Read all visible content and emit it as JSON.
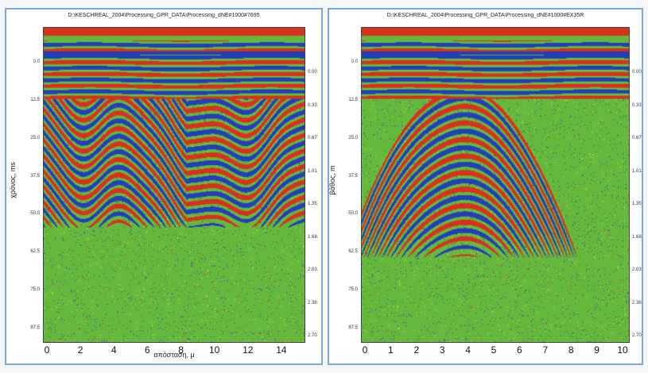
{
  "panels": [
    {
      "title": "D:\\KESCHREAL_2004\\Processing_GPR_DATA\\Processing_dNE#1000#7695",
      "ylabel": "χρόνος, ms",
      "xlabel": "απόσταση, μ",
      "y_ticks": [
        "0.0",
        "12.5",
        "25.0",
        "37.5",
        "50.0",
        "62.5",
        "75.0",
        "87.5"
      ],
      "right_ticks": [
        "0.00",
        "0.33",
        "0.67",
        "1.01",
        "1.35",
        "1.68",
        "2.03",
        "2.36",
        "2.70"
      ],
      "x_ticks": [
        "0",
        "2",
        "4",
        "6",
        "8",
        "10",
        "12",
        "14"
      ],
      "x_max": 15,
      "pattern": "dipping"
    },
    {
      "title": "D:\\KESCHREAL_2004\\Processing_GPR_DATA\\Processing_dNE#1000#EX35R",
      "ylabel": "βάθος, m",
      "xlabel": "",
      "y_ticks": [
        "0.0",
        "12.5",
        "25.0",
        "37.5",
        "50.0",
        "62.5",
        "75.0",
        "87.5"
      ],
      "right_ticks": [
        "0.00",
        "0.33",
        "0.67",
        "1.01",
        "1.35",
        "1.68",
        "2.03",
        "2.36",
        "2.70"
      ],
      "x_ticks": [
        "0",
        "1",
        "2",
        "3",
        "4",
        "5",
        "6",
        "7",
        "8",
        "9",
        "10"
      ],
      "x_max": 10,
      "pattern": "hyperbola"
    }
  ],
  "colors": {
    "background": "#64b83c",
    "red": "#d8321e",
    "blue": "#2340b8",
    "green": "#64b83c",
    "yellow": "#e6e32c",
    "panel_border": "#7aa9d6"
  }
}
